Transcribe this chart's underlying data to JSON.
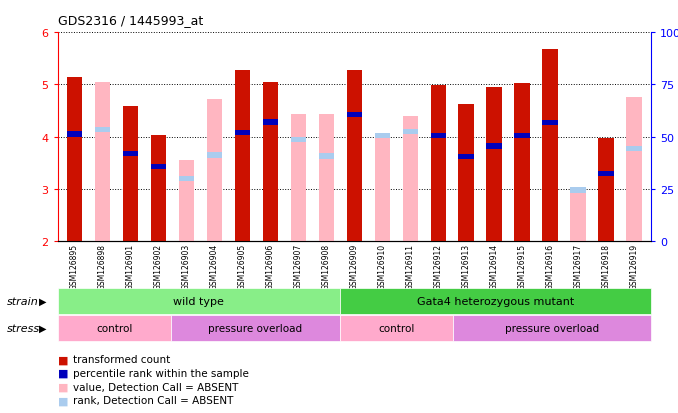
{
  "title": "GDS2316 / 1445993_at",
  "samples": [
    "GSM126895",
    "GSM126898",
    "GSM126901",
    "GSM126902",
    "GSM126903",
    "GSM126904",
    "GSM126905",
    "GSM126906",
    "GSM126907",
    "GSM126908",
    "GSM126909",
    "GSM126910",
    "GSM126911",
    "GSM126912",
    "GSM126913",
    "GSM126914",
    "GSM126915",
    "GSM126916",
    "GSM126917",
    "GSM126918",
    "GSM126919"
  ],
  "red_values": [
    5.15,
    null,
    4.58,
    4.03,
    null,
    null,
    5.27,
    5.05,
    null,
    null,
    5.28,
    null,
    null,
    4.98,
    4.62,
    4.95,
    5.03,
    5.68,
    null,
    3.98,
    null
  ],
  "pink_values": [
    null,
    5.05,
    null,
    null,
    3.55,
    4.72,
    null,
    null,
    4.43,
    4.43,
    null,
    3.98,
    4.4,
    null,
    null,
    null,
    null,
    null,
    2.92,
    null,
    4.75
  ],
  "blue_values": [
    4.05,
    null,
    3.68,
    3.43,
    null,
    null,
    4.08,
    4.28,
    null,
    null,
    4.43,
    null,
    null,
    4.02,
    3.62,
    3.82,
    4.02,
    4.27,
    null,
    3.3,
    null
  ],
  "lightblue_values": [
    null,
    4.13,
    null,
    null,
    3.2,
    3.65,
    null,
    null,
    3.95,
    3.63,
    null,
    4.02,
    4.1,
    null,
    null,
    null,
    null,
    null,
    2.98,
    null,
    3.78
  ],
  "ylim": [
    2,
    6
  ],
  "right_yticks": [
    0,
    25,
    50,
    75,
    100
  ],
  "left_yticks": [
    2,
    3,
    4,
    5,
    6
  ],
  "bar_width": 0.55,
  "red_color": "#CC1100",
  "pink_color": "#FFB6C1",
  "blue_color": "#0000BB",
  "lightblue_color": "#AACCEE",
  "axis_bg": "#D3D3D3",
  "strain_groups": [
    {
      "label": "wild type",
      "xstart": 0,
      "xend": 10
    },
    {
      "label": "Gata4 heterozygous mutant",
      "xstart": 10,
      "xend": 21
    }
  ],
  "strain_colors": [
    "#88EE88",
    "#44DD44"
  ],
  "stress_groups": [
    {
      "label": "control",
      "xstart": 0,
      "xend": 4,
      "color": "#FFAACC"
    },
    {
      "label": "pressure overload",
      "xstart": 4,
      "xend": 10,
      "color": "#EE88EE"
    },
    {
      "label": "control",
      "xstart": 10,
      "xend": 14,
      "color": "#FFAACC"
    },
    {
      "label": "pressure overload",
      "xstart": 14,
      "xend": 21,
      "color": "#EE88EE"
    }
  ]
}
